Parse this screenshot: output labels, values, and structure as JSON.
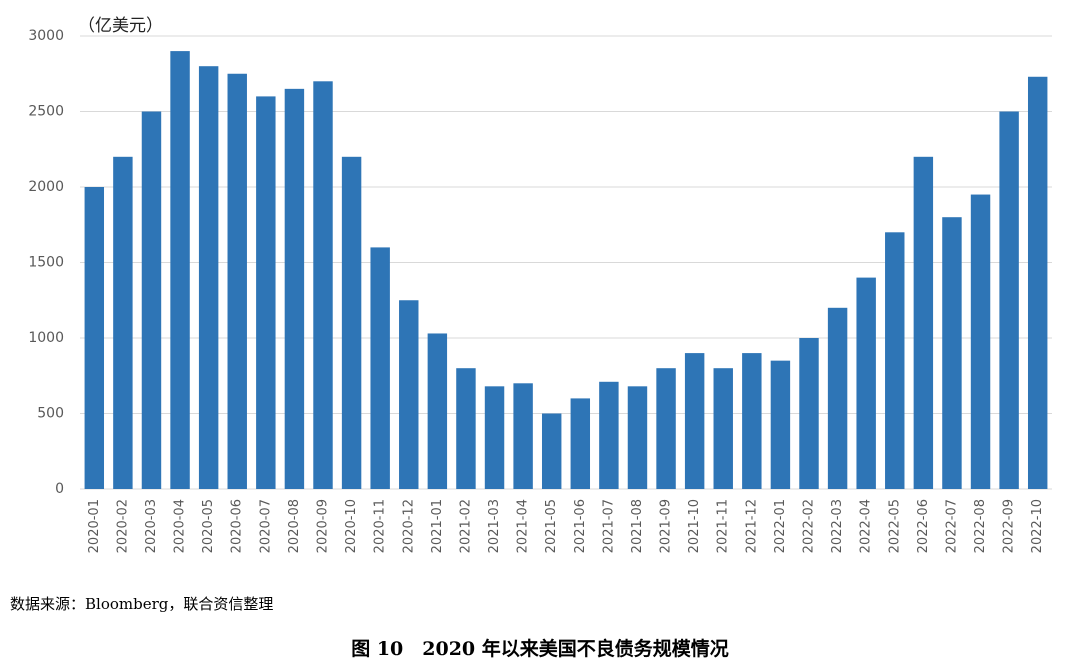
{
  "chart_data": {
    "type": "bar",
    "title": "图 10　2020 年以来美国不良债务规模情况",
    "y_axis_label": "（亿美元）",
    "source": "数据来源：Bloomberg，联合资信整理",
    "categories": [
      "2020-01",
      "2020-02",
      "2020-03",
      "2020-04",
      "2020-05",
      "2020-06",
      "2020-07",
      "2020-08",
      "2020-09",
      "2020-10",
      "2020-11",
      "2020-12",
      "2021-01",
      "2021-02",
      "2021-03",
      "2021-04",
      "2021-05",
      "2021-06",
      "2021-07",
      "2021-08",
      "2021-09",
      "2021-10",
      "2021-11",
      "2021-12",
      "2022-01",
      "2022-02",
      "2022-03",
      "2022-04",
      "2022-05",
      "2022-06",
      "2022-07",
      "2022-08",
      "2022-09",
      "2022-10"
    ],
    "values": [
      2000,
      2200,
      2500,
      2900,
      2800,
      2750,
      2600,
      2650,
      2700,
      2200,
      1600,
      1250,
      1030,
      800,
      680,
      700,
      500,
      600,
      710,
      680,
      800,
      900,
      800,
      900,
      850,
      1000,
      1200,
      1400,
      1700,
      2200,
      1800,
      1950,
      2500,
      2730
    ],
    "color": "#2e75b6",
    "ylim": [
      0,
      3000
    ],
    "yticks": [
      0,
      500,
      1000,
      1500,
      2000,
      2500,
      3000
    ],
    "grid": true
  }
}
